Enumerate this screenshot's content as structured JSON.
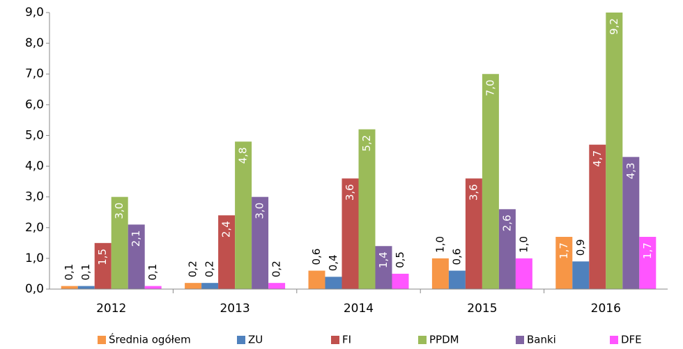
{
  "chart_data": {
    "type": "bar",
    "categories": [
      "2012",
      "2013",
      "2014",
      "2015",
      "2016"
    ],
    "series": [
      {
        "name": "Średnia ogółem",
        "color": "#f79646",
        "values": [
          0.1,
          0.2,
          0.6,
          1.0,
          1.7
        ],
        "value_labels": [
          "0,1",
          "0,2",
          "0,6",
          "1,0",
          "1,7"
        ]
      },
      {
        "name": "ZU",
        "color": "#4f81bd",
        "values": [
          0.1,
          0.2,
          0.4,
          0.6,
          0.9
        ],
        "value_labels": [
          "0,1",
          "0,2",
          "0,4",
          "0,6",
          "0,9"
        ]
      },
      {
        "name": "FI",
        "color": "#c0504d",
        "values": [
          1.5,
          2.4,
          3.6,
          3.6,
          4.7
        ],
        "value_labels": [
          "1,5",
          "2,4",
          "3,6",
          "3,6",
          "4,7"
        ]
      },
      {
        "name": "PPDM",
        "color": "#9bbb59",
        "values": [
          3.0,
          4.8,
          5.2,
          7.0,
          9.2
        ],
        "value_labels": [
          "3,0",
          "4,8",
          "5,2",
          "7,0",
          "9,2"
        ]
      },
      {
        "name": "Banki",
        "color": "#8064a2",
        "values": [
          2.1,
          3.0,
          1.4,
          2.6,
          4.3
        ],
        "value_labels": [
          "2,1",
          "3,0",
          "1,4",
          "2,6",
          "4,3"
        ]
      },
      {
        "name": "DFE",
        "color": "#ff55ff",
        "values": [
          0.1,
          0.2,
          0.5,
          1.0,
          1.7
        ],
        "value_labels": [
          "0,1",
          "0,2",
          "0,5",
          "1,0",
          "1,7"
        ]
      }
    ],
    "ylim": [
      0,
      9
    ],
    "yticks": [
      {
        "value": 0,
        "label": "0,0"
      },
      {
        "value": 1,
        "label": "1,0"
      },
      {
        "value": 2,
        "label": "2,0"
      },
      {
        "value": 3,
        "label": "3,0"
      },
      {
        "value": 4,
        "label": "4,0"
      },
      {
        "value": 5,
        "label": "5,0"
      },
      {
        "value": 6,
        "label": "6,0"
      },
      {
        "value": 7,
        "label": "7,0"
      },
      {
        "value": 8,
        "label": "8,0"
      },
      {
        "value": 9,
        "label": "9,0"
      }
    ],
    "grid": false,
    "legend": "bottom"
  }
}
